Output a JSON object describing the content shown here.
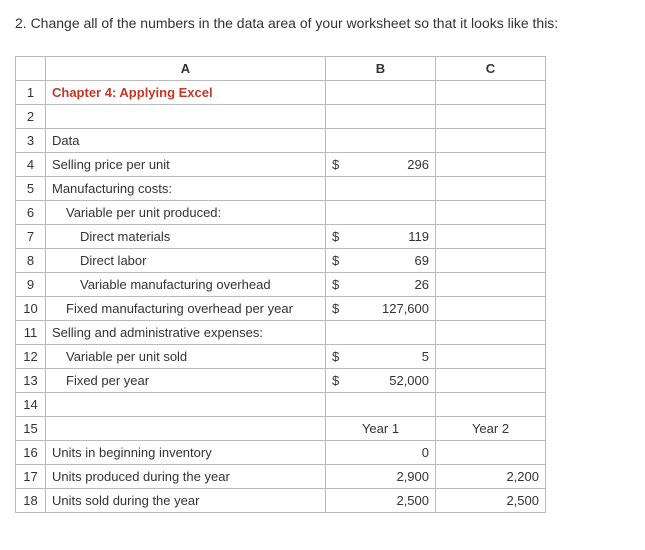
{
  "instruction": "2. Change all of the numbers in the data area of your worksheet so that it looks like this:",
  "headers": {
    "a": "A",
    "b": "B",
    "c": "C"
  },
  "rows": {
    "r1": {
      "n": "1",
      "a": "Chapter 4: Applying Excel"
    },
    "r2": {
      "n": "2",
      "a": ""
    },
    "r3": {
      "n": "3",
      "a": "Data"
    },
    "r4": {
      "n": "4",
      "a": "Selling price per unit",
      "sym": "$",
      "val": "296"
    },
    "r5": {
      "n": "5",
      "a": "Manufacturing costs:"
    },
    "r6": {
      "n": "6",
      "a": "Variable per unit produced:"
    },
    "r7": {
      "n": "7",
      "a": "Direct materials",
      "sym": "$",
      "val": "119"
    },
    "r8": {
      "n": "8",
      "a": "Direct labor",
      "sym": "$",
      "val": "69"
    },
    "r9": {
      "n": "9",
      "a": "Variable manufacturing overhead",
      "sym": "$",
      "val": "26"
    },
    "r10": {
      "n": "10",
      "a": "Fixed manufacturing overhead per year",
      "sym": "$",
      "val": "127,600"
    },
    "r11": {
      "n": "11",
      "a": "Selling and administrative expenses:"
    },
    "r12": {
      "n": "12",
      "a": "Variable per unit sold",
      "sym": "$",
      "val": "5"
    },
    "r13": {
      "n": "13",
      "a": "Fixed per year",
      "sym": "$",
      "val": "52,000"
    },
    "r14": {
      "n": "14",
      "a": ""
    },
    "r15": {
      "n": "15",
      "a": "",
      "b": "Year 1",
      "c": "Year 2"
    },
    "r16": {
      "n": "16",
      "a": "Units in beginning inventory",
      "b": "0",
      "c": ""
    },
    "r17": {
      "n": "17",
      "a": "Units produced during the year",
      "b": "2,900",
      "c": "2,200"
    },
    "r18": {
      "n": "18",
      "a": "Units sold during the year",
      "b": "2,500",
      "c": "2,500"
    }
  }
}
